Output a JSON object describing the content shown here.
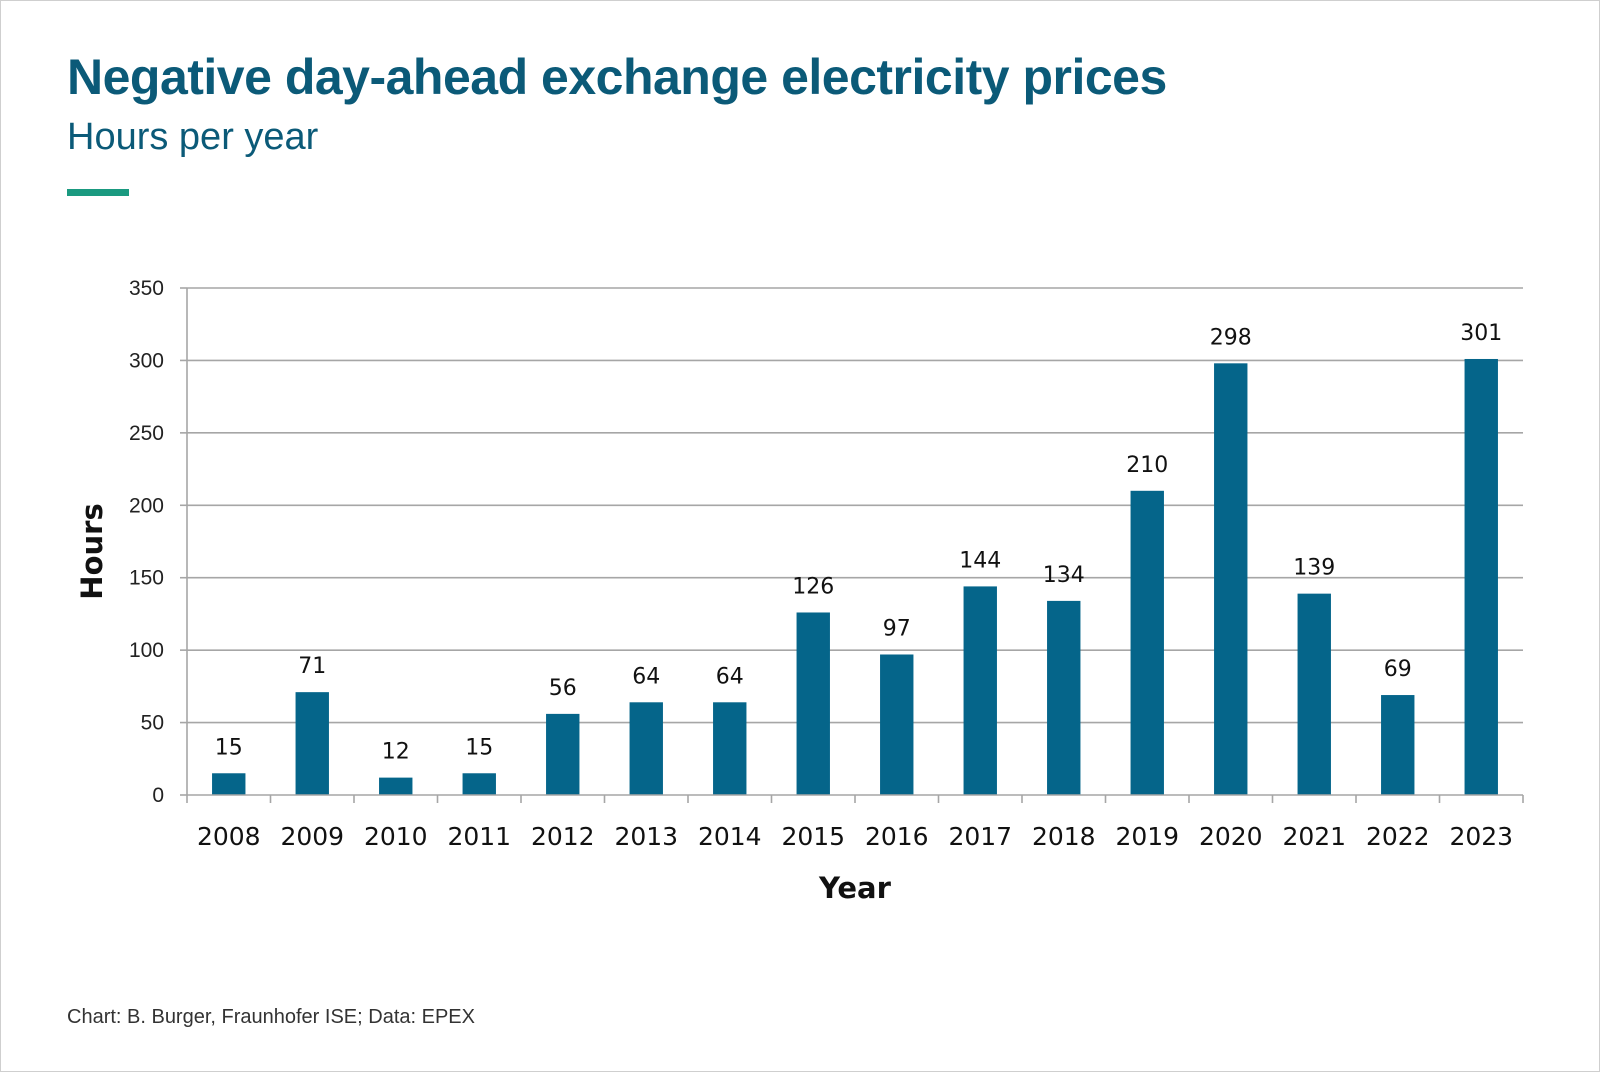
{
  "header": {
    "title": "Negative day-ahead exchange electricity prices",
    "subtitle": "Hours per year"
  },
  "footer": {
    "credit": "Chart: B. Burger, Fraunhofer ISE; Data: EPEX"
  },
  "colors": {
    "title": "#0b5a78",
    "accent": "#1a9a80",
    "bar": "#05658a",
    "grid": "#a6a6a6"
  },
  "chart_data": {
    "type": "bar",
    "title": "Negative day-ahead exchange electricity prices",
    "subtitle": "Hours per year",
    "xlabel": "Year",
    "ylabel": "Hours",
    "categories": [
      "2008",
      "2009",
      "2010",
      "2011",
      "2012",
      "2013",
      "2014",
      "2015",
      "2016",
      "2017",
      "2018",
      "2019",
      "2020",
      "2021",
      "2022",
      "2023"
    ],
    "values": [
      15,
      71,
      12,
      15,
      56,
      64,
      64,
      126,
      97,
      144,
      134,
      210,
      298,
      139,
      69,
      301
    ],
    "ylim": [
      0,
      350
    ],
    "yticks": [
      0,
      50,
      100,
      150,
      200,
      250,
      300,
      350
    ],
    "grid": true,
    "data_labels": true
  }
}
